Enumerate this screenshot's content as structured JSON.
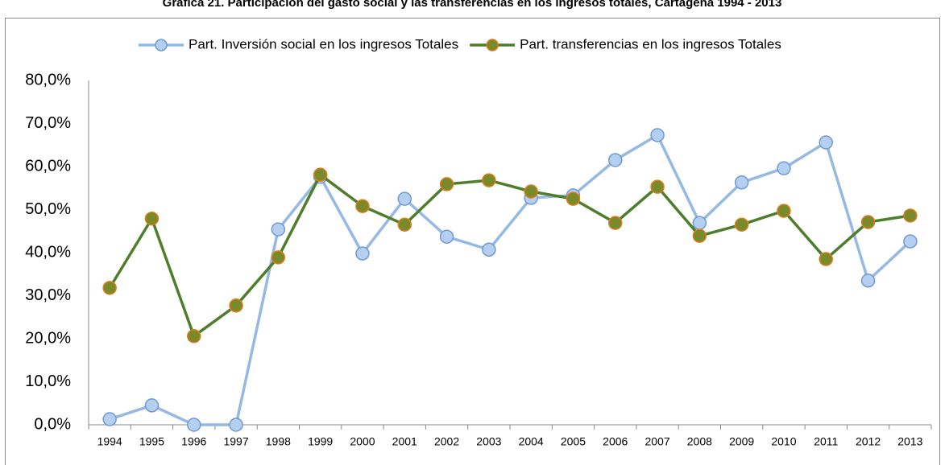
{
  "chart_data": {
    "type": "line",
    "title": "Gráfica 21. Participación del gasto social y las transferencias en los ingresos totales, Cartagena 1994 - 2013",
    "categories": [
      "1994",
      "1995",
      "1996",
      "1997",
      "1998",
      "1999",
      "2000",
      "2001",
      "2002",
      "2003",
      "2004",
      "2005",
      "2006",
      "2007",
      "2008",
      "2009",
      "2010",
      "2011",
      "2012",
      "2013"
    ],
    "series": [
      {
        "name": "Part. Inversión social en los ingresos Totales",
        "color": "#95b9e3",
        "marker_fill": "#b4cff0",
        "marker_edge": "#6f9ad3",
        "values": [
          1.3,
          4.5,
          0,
          0,
          45.4,
          57.6,
          39.8,
          52.5,
          43.7,
          40.7,
          52.7,
          53.3,
          61.5,
          67.3,
          46.9,
          56.3,
          59.6,
          65.6,
          33.5,
          42.6
        ]
      },
      {
        "name": "Part. transferencias en los ingresos Totales",
        "color": "#4e7e2c",
        "marker_fill": "#7a8a2a",
        "marker_edge": "#e07b1f",
        "values": [
          31.8,
          47.9,
          20.6,
          27.7,
          38.9,
          58.1,
          50.8,
          46.5,
          55.9,
          56.8,
          54.2,
          52.5,
          46.9,
          55.3,
          43.9,
          46.5,
          49.7,
          38.5,
          47.1,
          48.6
        ]
      }
    ],
    "ylim": [
      0,
      80
    ],
    "yticks": [
      {
        "value": 0,
        "label": "0,0%"
      },
      {
        "value": 10,
        "label": "10,0%"
      },
      {
        "value": 20,
        "label": "20,0%"
      },
      {
        "value": 30,
        "label": "30,0%"
      },
      {
        "value": 40,
        "label": "40,0%"
      },
      {
        "value": 50,
        "label": "50,0%"
      },
      {
        "value": 60,
        "label": "60,0%"
      },
      {
        "value": 70,
        "label": "70,0%"
      },
      {
        "value": 80,
        "label": "80,0%"
      }
    ],
    "grid": false,
    "legend": "top"
  }
}
